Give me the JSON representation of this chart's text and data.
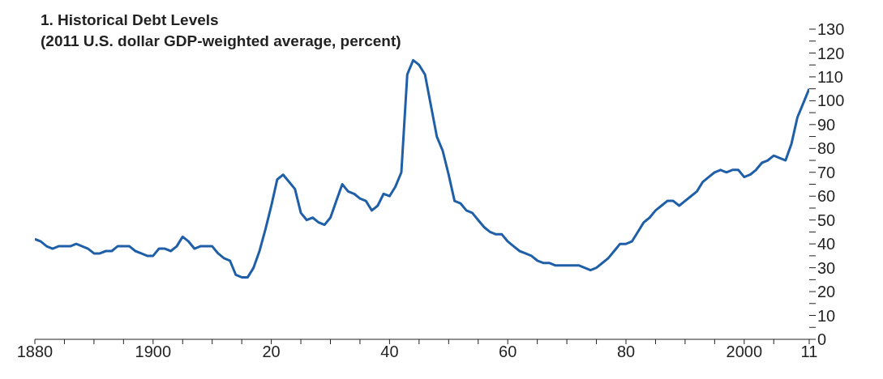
{
  "chart_data": {
    "type": "line",
    "title": "1. Historical Debt Levels",
    "subtitle": "(2011 U.S. dollar GDP-weighted average, percent)",
    "x": [
      1880,
      1881,
      1882,
      1883,
      1884,
      1885,
      1886,
      1887,
      1888,
      1889,
      1890,
      1891,
      1892,
      1893,
      1894,
      1895,
      1896,
      1897,
      1898,
      1899,
      1900,
      1901,
      1902,
      1903,
      1904,
      1905,
      1906,
      1907,
      1908,
      1909,
      1910,
      1911,
      1912,
      1913,
      1914,
      1915,
      1916,
      1917,
      1918,
      1919,
      1920,
      1921,
      1922,
      1923,
      1924,
      1925,
      1926,
      1927,
      1928,
      1929,
      1930,
      1931,
      1932,
      1933,
      1934,
      1935,
      1936,
      1937,
      1938,
      1939,
      1940,
      1941,
      1942,
      1943,
      1944,
      1945,
      1946,
      1947,
      1948,
      1949,
      1950,
      1951,
      1952,
      1953,
      1954,
      1955,
      1956,
      1957,
      1958,
      1959,
      1960,
      1961,
      1962,
      1963,
      1964,
      1965,
      1966,
      1967,
      1968,
      1969,
      1970,
      1971,
      1972,
      1973,
      1974,
      1975,
      1976,
      1977,
      1978,
      1979,
      1980,
      1981,
      1982,
      1983,
      1984,
      1985,
      1986,
      1987,
      1988,
      1989,
      1990,
      1991,
      1992,
      1993,
      1994,
      1995,
      1996,
      1997,
      1998,
      1999,
      2000,
      2001,
      2002,
      2003,
      2004,
      2005,
      2006,
      2007,
      2008,
      2009,
      2010,
      2011
    ],
    "series": [
      {
        "color": "#1f5fa8",
        "values": [
          42,
          41,
          39,
          38,
          39,
          39,
          39,
          40,
          39,
          38,
          36,
          36,
          37,
          37,
          39,
          39,
          39,
          37,
          36,
          35,
          35,
          38,
          38,
          37,
          39,
          43,
          41,
          38,
          39,
          39,
          39,
          36,
          34,
          33,
          27,
          26,
          26,
          30,
          37,
          46,
          56,
          67,
          69,
          66,
          63,
          53,
          50,
          51,
          49,
          48,
          51,
          58,
          65,
          62,
          61,
          59,
          58,
          54,
          56,
          61,
          60,
          64,
          70,
          111,
          117,
          115,
          111,
          98,
          85,
          79,
          69,
          58,
          57,
          54,
          53,
          50,
          47,
          45,
          44,
          44,
          41,
          39,
          37,
          36,
          35,
          33,
          32,
          32,
          31,
          31,
          31,
          31,
          31,
          30,
          29,
          30,
          32,
          34,
          37,
          40,
          40,
          41,
          45,
          49,
          51,
          54,
          56,
          58,
          58,
          56,
          58,
          60,
          62,
          66,
          68,
          70,
          71,
          70,
          71,
          71,
          68,
          69,
          71,
          74,
          75,
          77,
          76,
          75,
          82,
          93,
          99,
          105
        ]
      }
    ],
    "xlim": [
      1880,
      2011
    ],
    "xticks": [
      1880,
      {
        "value": 1885,
        "label": null
      },
      {
        "value": 1890,
        "label": null
      },
      {
        "value": 1895,
        "label": null
      },
      1900,
      {
        "value": 1905,
        "label": null
      },
      {
        "value": 1910,
        "label": null
      },
      {
        "value": 1915,
        "label": null
      },
      {
        "value": 1920,
        "label": "20"
      },
      {
        "value": 1925,
        "label": null
      },
      {
        "value": 1930,
        "label": null
      },
      {
        "value": 1935,
        "label": null
      },
      {
        "value": 1940,
        "label": "40"
      },
      {
        "value": 1945,
        "label": null
      },
      {
        "value": 1950,
        "label": null
      },
      {
        "value": 1955,
        "label": null
      },
      {
        "value": 1960,
        "label": "60"
      },
      {
        "value": 1965,
        "label": null
      },
      {
        "value": 1970,
        "label": null
      },
      {
        "value": 1975,
        "label": null
      },
      {
        "value": 1980,
        "label": "80"
      },
      {
        "value": 1985,
        "label": null
      },
      {
        "value": 1990,
        "label": null
      },
      {
        "value": 1995,
        "label": null
      },
      2000,
      {
        "value": 2005,
        "label": null
      },
      {
        "value": 2011,
        "label": "11"
      }
    ],
    "ylim": [
      0,
      130
    ],
    "yticks": [
      0,
      {
        "value": 5,
        "label": null
      },
      10,
      {
        "value": 15,
        "label": null
      },
      20,
      {
        "value": 25,
        "label": null
      },
      30,
      {
        "value": 35,
        "label": null
      },
      40,
      {
        "value": 45,
        "label": null
      },
      50,
      {
        "value": 55,
        "label": null
      },
      60,
      {
        "value": 65,
        "label": null
      },
      70,
      {
        "value": 75,
        "label": null
      },
      80,
      {
        "value": 85,
        "label": null
      },
      90,
      {
        "value": 95,
        "label": null
      },
      100,
      {
        "value": 105,
        "label": null
      },
      110,
      {
        "value": 115,
        "label": null
      },
      120,
      {
        "value": 125,
        "label": null
      },
      130
    ],
    "grid": false,
    "legend": false,
    "marker": "none",
    "line_style": "solid"
  }
}
